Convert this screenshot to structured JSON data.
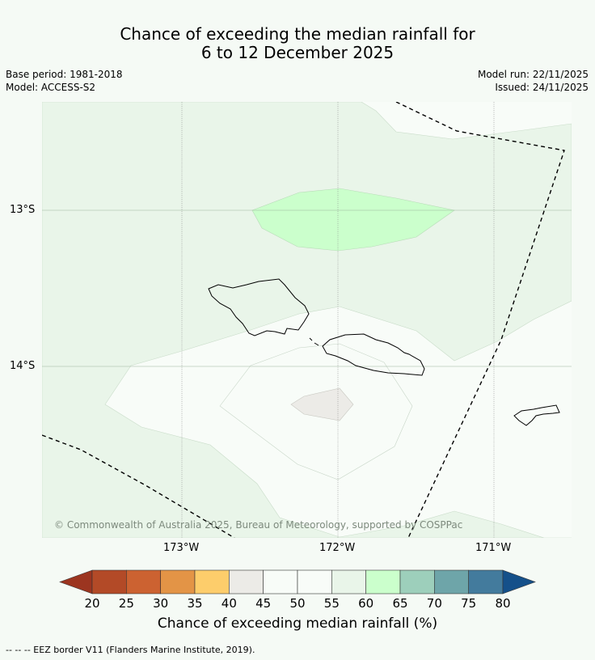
{
  "title_line1": "Chance of exceeding the median rainfall for",
  "title_line2": "6 to 12 December 2025",
  "base_period": "Base period: 1981-2018",
  "model": "Model: ACCESS-S2",
  "model_run": "Model run: 22/11/2025",
  "issued": "Issued: 24/11/2025",
  "lat_labels": [
    "13°S",
    "14°S"
  ],
  "lon_labels": [
    "173°W",
    "172°W",
    "171°W"
  ],
  "copyright": "© Commonwealth of Australia 2025, Bureau of Meteorology, supported by COSPPac",
  "colorbar": {
    "label": "Chance of exceeding median rainfall (%)",
    "ticks": [
      "20",
      "25",
      "30",
      "35",
      "40",
      "45",
      "50",
      "55",
      "60",
      "65",
      "70",
      "75",
      "80"
    ],
    "colors": [
      "#9c3520",
      "#b34a27",
      "#cc6231",
      "#e39446",
      "#fdcd6b",
      "#ecebe7",
      "#f8fcf8",
      "#f8fcf8",
      "#e9f5e9",
      "#cbffcc",
      "#9dcfbb",
      "#6ea5a9",
      "#437b9d",
      "#15508a"
    ]
  },
  "footnote": "--  --  -- EEZ border V11 (Flanders Marine Institute, 2019)."
}
